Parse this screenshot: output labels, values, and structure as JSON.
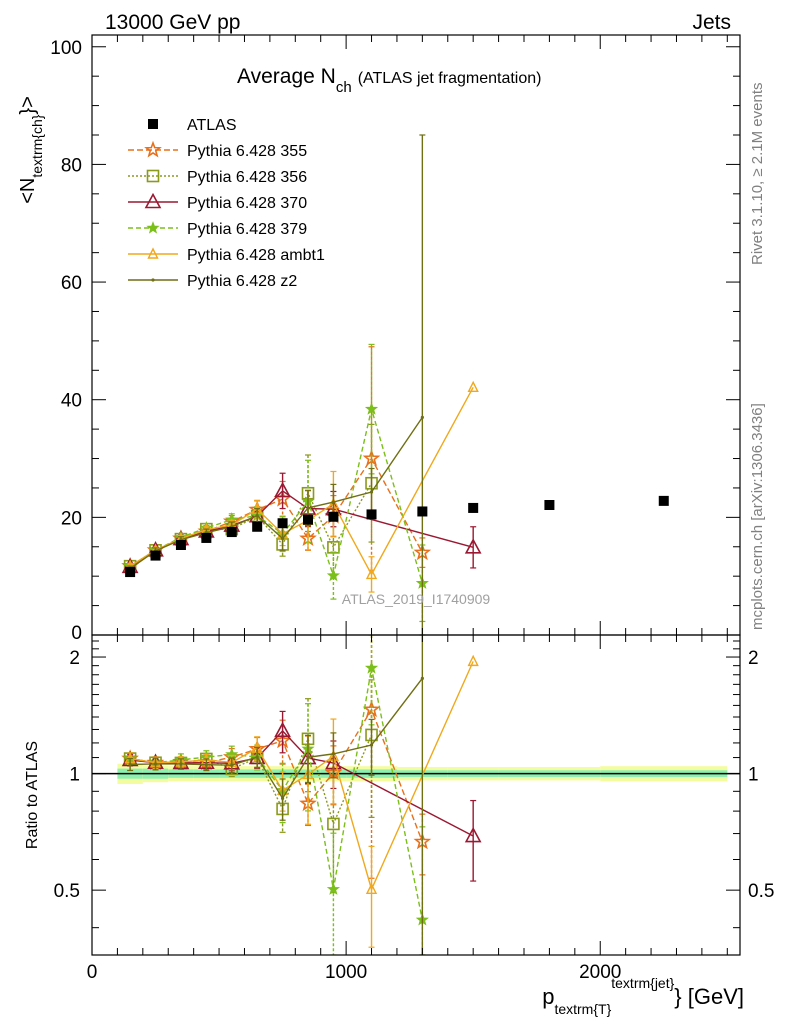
{
  "header": {
    "left": "13000 GeV pp",
    "right": "Jets"
  },
  "side_labels": {
    "rivet": "Rivet 3.1.10, ≥ 2.1M events",
    "mcplots": "mcplots.cern.ch [arXiv:1306.3436]"
  },
  "chart_data": {
    "type": "line",
    "title_main": "Average N",
    "title_sub": "ch",
    "title_note": "(ATLAS jet fragmentation)",
    "analysis_id": "ATLAS_2019_I1740909",
    "ylabel_main": "<N",
    "ylabel_sub": "textrm{ch}",
    "ylabel_close": "}>",
    "xlabel_p": "p",
    "xlabel_sub": "textrm{T}",
    "xlabel_sup": "textrm{jet}",
    "xlabel_close": "} [GeV]",
    "ratio_ylabel": "Ratio to ATLAS",
    "xlim": [
      0,
      2550
    ],
    "ylim_main": [
      0,
      102
    ],
    "ylim_ratio": [
      0.34,
      2.28
    ],
    "ratio_log_scale": true,
    "x_ticks": [
      {
        "value": 0,
        "label": "0"
      },
      {
        "value": 1000,
        "label": "1000"
      },
      {
        "value": 2000,
        "label": "2000"
      }
    ],
    "y_ticks_main": [
      {
        "value": 0,
        "label": "0"
      },
      {
        "value": 20,
        "label": "20"
      },
      {
        "value": 40,
        "label": "40"
      },
      {
        "value": 60,
        "label": "60"
      },
      {
        "value": 80,
        "label": "80"
      },
      {
        "value": 100,
        "label": "100"
      }
    ],
    "y_ticks_ratio": [
      {
        "value": 0.5,
        "label": "0.5"
      },
      {
        "value": 1,
        "label": "1"
      },
      {
        "value": 2,
        "label": "2"
      }
    ],
    "legend_position": "top-left",
    "data": {
      "name": "ATLAS",
      "color": "#000000",
      "x": [
        150,
        250,
        350,
        450,
        550,
        650,
        750,
        850,
        950,
        1100,
        1300,
        1500,
        1800,
        2250
      ],
      "y": [
        10.7,
        13.5,
        15.3,
        16.5,
        17.5,
        18.4,
        19.0,
        19.6,
        20.1,
        20.5,
        21.0,
        21.6,
        22.1,
        22.8
      ]
    },
    "series": [
      {
        "name": "Pythia 6.428 355",
        "color": "#e8701a",
        "dash": "6,3",
        "marker": "star",
        "x": [
          150,
          250,
          350,
          450,
          550,
          650,
          750,
          850,
          950,
          1100,
          1300
        ],
        "y": [
          11.7,
          14.4,
          16.4,
          17.6,
          19.3,
          21.3,
          23.1,
          16.4,
          20.2,
          30.0,
          14.0
        ],
        "err": [
          0.4,
          0.5,
          0.5,
          0.7,
          1.0,
          1.5,
          3.0,
          2.0,
          3.5,
          19.0,
          2.5
        ]
      },
      {
        "name": "Pythia 6.428 356",
        "color": "#8a9a1b",
        "dash": "2,2",
        "marker": "open-square",
        "x": [
          150,
          250,
          350,
          450,
          550,
          650,
          750,
          850,
          950,
          1100
        ],
        "y": [
          11.7,
          14.4,
          16.3,
          18.0,
          18.0,
          20.2,
          15.4,
          24.1,
          14.9,
          25.8
        ],
        "err": [
          0.4,
          0.5,
          0.5,
          0.6,
          0.8,
          1.2,
          2.0,
          6.5,
          5.0,
          10.0
        ]
      },
      {
        "name": "Pythia 6.428 370",
        "color": "#9b1832",
        "dash": "",
        "marker": "open-triangle",
        "x": [
          150,
          250,
          350,
          450,
          550,
          650,
          750,
          850,
          950,
          1500
        ],
        "y": [
          11.6,
          14.4,
          16.3,
          17.6,
          18.6,
          20.2,
          24.5,
          21.5,
          21.4,
          14.9
        ],
        "err": [
          0.4,
          0.5,
          0.5,
          0.6,
          0.8,
          1.2,
          3.0,
          3.0,
          3.0,
          3.5
        ]
      },
      {
        "name": "Pythia 6.428 379",
        "color": "#7bbf1a",
        "dash": "5,3",
        "marker": "small-star",
        "x": [
          150,
          250,
          350,
          450,
          550,
          650,
          750,
          850,
          950,
          1100,
          1300
        ],
        "y": [
          11.7,
          14.4,
          16.6,
          18.2,
          19.6,
          20.3,
          17.2,
          22.7,
          10.1,
          38.4,
          8.8
        ],
        "err": [
          0.4,
          0.5,
          0.6,
          0.7,
          1.0,
          1.5,
          3.0,
          7.0,
          4.0,
          11.0,
          6.5
        ]
      },
      {
        "name": "Pythia 6.428 ambt1",
        "color": "#f0a81c",
        "dash": "",
        "marker": "open-triangle-small",
        "x": [
          150,
          250,
          350,
          450,
          550,
          650,
          750,
          850,
          950,
          1100,
          1500
        ],
        "y": [
          11.7,
          14.4,
          16.4,
          17.9,
          18.7,
          21.4,
          17.2,
          19.5,
          22.3,
          10.3,
          42.1
        ],
        "err": [
          0.4,
          0.5,
          0.5,
          0.6,
          0.8,
          1.5,
          2.0,
          5.0,
          5.5,
          3.0,
          0.0
        ]
      },
      {
        "name": "Pythia 6.428 z2",
        "color": "#6f6f14",
        "dash": "",
        "marker": "dot",
        "x": [
          150,
          250,
          350,
          450,
          550,
          650,
          750,
          850,
          950,
          1100,
          1300
        ],
        "y": [
          11.3,
          14.3,
          16.2,
          17.4,
          18.4,
          20.3,
          16.4,
          21.6,
          22.6,
          24.3,
          37.0
        ],
        "err": [
          0.4,
          0.5,
          0.5,
          0.6,
          0.8,
          1.2,
          2.0,
          3.0,
          3.0,
          4.0,
          48.0
        ]
      }
    ],
    "uncertainty_band": {
      "edges": [
        100,
        200,
        300,
        400,
        500,
        600,
        700,
        800,
        900,
        1000,
        1200,
        1400,
        1600,
        2000,
        2500
      ],
      "inner_halfwidth": [
        0.03,
        0.03,
        0.025,
        0.025,
        0.025,
        0.025,
        0.025,
        0.025,
        0.025,
        0.025,
        0.02,
        0.02,
        0.02,
        0.02
      ],
      "outer_halfwidth": [
        0.06,
        0.05,
        0.045,
        0.045,
        0.045,
        0.045,
        0.045,
        0.045,
        0.045,
        0.045,
        0.04,
        0.04,
        0.04,
        0.045
      ],
      "inner_color": "#8cf0b0",
      "outer_color": "#f4fca0"
    }
  }
}
